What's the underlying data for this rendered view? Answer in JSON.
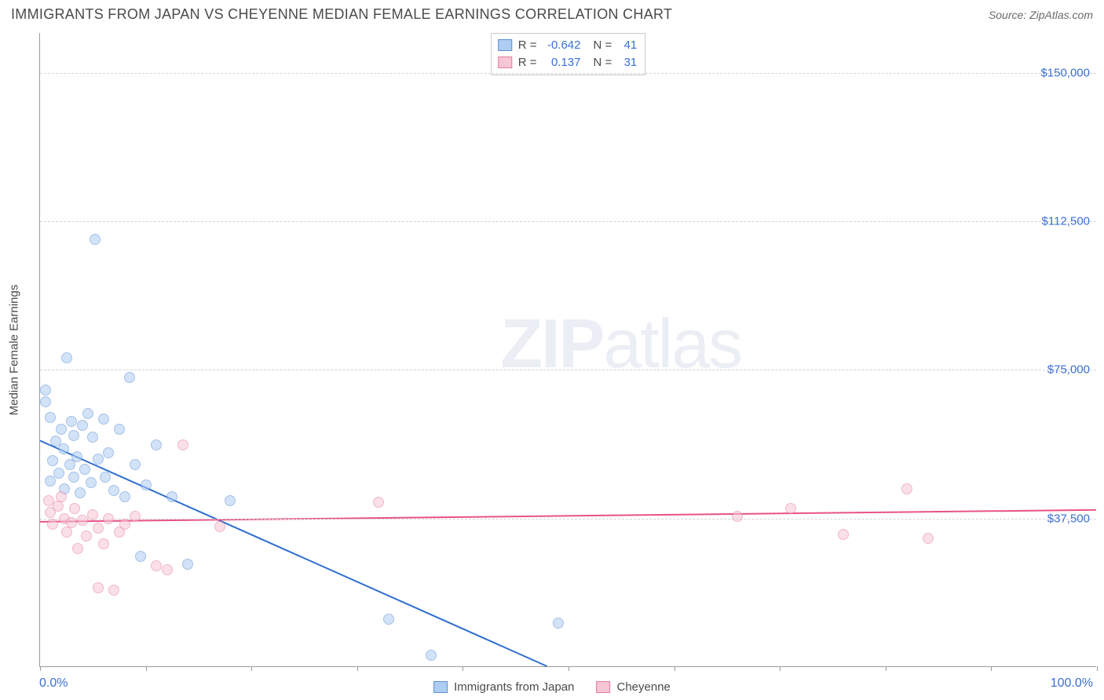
{
  "title": "IMMIGRANTS FROM JAPAN VS CHEYENNE MEDIAN FEMALE EARNINGS CORRELATION CHART",
  "source_label": "Source:",
  "source_name": "ZipAtlas.com",
  "watermark_bold": "ZIP",
  "watermark_rest": "atlas",
  "y_axis_title": "Median Female Earnings",
  "chart": {
    "type": "scatter",
    "background_color": "#ffffff",
    "grid_color": "#d5d5d5",
    "axis_color": "#9a9a9a",
    "label_color": "#3b6fd4",
    "text_color": "#4a4a4a",
    "label_fontsize": 15,
    "title_fontsize": 18,
    "xlim": [
      0,
      100
    ],
    "ylim": [
      0,
      160000
    ],
    "x_tick_positions": [
      0,
      10,
      20,
      30,
      40,
      50,
      60,
      70,
      80,
      90,
      100
    ],
    "x_label_min": "0.0%",
    "x_label_max": "100.0%",
    "y_grid": [
      {
        "value": 37500,
        "label": "$37,500"
      },
      {
        "value": 75000,
        "label": "$75,000"
      },
      {
        "value": 112500,
        "label": "$112,500"
      },
      {
        "value": 150000,
        "label": "$150,000"
      }
    ],
    "marker_radius": 7,
    "marker_stroke_width": 1.2,
    "marker_opacity": 0.55,
    "trend_line_width": 2,
    "series": [
      {
        "name": "Immigrants from Japan",
        "fill": "#aecdf2",
        "stroke": "#5c8fd6",
        "r_label": "R =",
        "r_value": "-0.642",
        "n_label": "N =",
        "n_value": "41",
        "trend": {
          "x1": 0,
          "y1": 57000,
          "x2": 48,
          "y2": 0,
          "color": "#2f6fd0"
        },
        "points": [
          {
            "x": 0.5,
            "y": 70000
          },
          {
            "x": 0.5,
            "y": 67000
          },
          {
            "x": 1.0,
            "y": 63000
          },
          {
            "x": 1.0,
            "y": 47000
          },
          {
            "x": 1.2,
            "y": 52000
          },
          {
            "x": 1.5,
            "y": 57000
          },
          {
            "x": 1.8,
            "y": 49000
          },
          {
            "x": 2.0,
            "y": 60000
          },
          {
            "x": 2.2,
            "y": 55000
          },
          {
            "x": 2.3,
            "y": 45000
          },
          {
            "x": 2.5,
            "y": 78000
          },
          {
            "x": 2.8,
            "y": 51000
          },
          {
            "x": 3.0,
            "y": 62000
          },
          {
            "x": 3.2,
            "y": 58500
          },
          {
            "x": 3.2,
            "y": 48000
          },
          {
            "x": 3.5,
            "y": 53000
          },
          {
            "x": 3.8,
            "y": 44000
          },
          {
            "x": 4.0,
            "y": 61000
          },
          {
            "x": 4.2,
            "y": 50000
          },
          {
            "x": 4.5,
            "y": 64000
          },
          {
            "x": 4.8,
            "y": 46500
          },
          {
            "x": 5.0,
            "y": 58000
          },
          {
            "x": 5.2,
            "y": 108000
          },
          {
            "x": 5.5,
            "y": 52500
          },
          {
            "x": 6.0,
            "y": 62500
          },
          {
            "x": 6.2,
            "y": 48000
          },
          {
            "x": 6.5,
            "y": 54000
          },
          {
            "x": 7.0,
            "y": 44500
          },
          {
            "x": 7.5,
            "y": 60000
          },
          {
            "x": 8.0,
            "y": 43000
          },
          {
            "x": 8.5,
            "y": 73000
          },
          {
            "x": 9.0,
            "y": 51000
          },
          {
            "x": 9.5,
            "y": 28000
          },
          {
            "x": 10.0,
            "y": 46000
          },
          {
            "x": 11.0,
            "y": 56000
          },
          {
            "x": 12.5,
            "y": 43000
          },
          {
            "x": 14.0,
            "y": 26000
          },
          {
            "x": 18.0,
            "y": 42000
          },
          {
            "x": 33.0,
            "y": 12000
          },
          {
            "x": 37.0,
            "y": 3000
          },
          {
            "x": 49.0,
            "y": 11000
          }
        ]
      },
      {
        "name": "Cheyenne",
        "fill": "#f6c6d4",
        "stroke": "#e67ca0",
        "r_label": "R =",
        "r_value": "0.137",
        "n_label": "N =",
        "n_value": "31",
        "trend": {
          "x1": 0,
          "y1": 36500,
          "x2": 100,
          "y2": 39500,
          "color": "#e8528a"
        },
        "points": [
          {
            "x": 0.8,
            "y": 42000
          },
          {
            "x": 1.0,
            "y": 39000
          },
          {
            "x": 1.2,
            "y": 36000
          },
          {
            "x": 1.7,
            "y": 40500
          },
          {
            "x": 2.0,
            "y": 43000
          },
          {
            "x": 2.3,
            "y": 37500
          },
          {
            "x": 2.5,
            "y": 34000
          },
          {
            "x": 3.0,
            "y": 36500
          },
          {
            "x": 3.3,
            "y": 40000
          },
          {
            "x": 3.6,
            "y": 30000
          },
          {
            "x": 4.0,
            "y": 37000
          },
          {
            "x": 4.4,
            "y": 33000
          },
          {
            "x": 5.0,
            "y": 38500
          },
          {
            "x": 5.5,
            "y": 35000
          },
          {
            "x": 5.5,
            "y": 20000
          },
          {
            "x": 6.0,
            "y": 31000
          },
          {
            "x": 6.5,
            "y": 37500
          },
          {
            "x": 7.0,
            "y": 19500
          },
          {
            "x": 7.5,
            "y": 34000
          },
          {
            "x": 8.0,
            "y": 36000
          },
          {
            "x": 9.0,
            "y": 38000
          },
          {
            "x": 11.0,
            "y": 25500
          },
          {
            "x": 12.0,
            "y": 24500
          },
          {
            "x": 13.5,
            "y": 56000
          },
          {
            "x": 17.0,
            "y": 35500
          },
          {
            "x": 32.0,
            "y": 41500
          },
          {
            "x": 66.0,
            "y": 38000
          },
          {
            "x": 71.0,
            "y": 40000
          },
          {
            "x": 76.0,
            "y": 33500
          },
          {
            "x": 82.0,
            "y": 45000
          },
          {
            "x": 84.0,
            "y": 32500
          }
        ]
      }
    ]
  }
}
